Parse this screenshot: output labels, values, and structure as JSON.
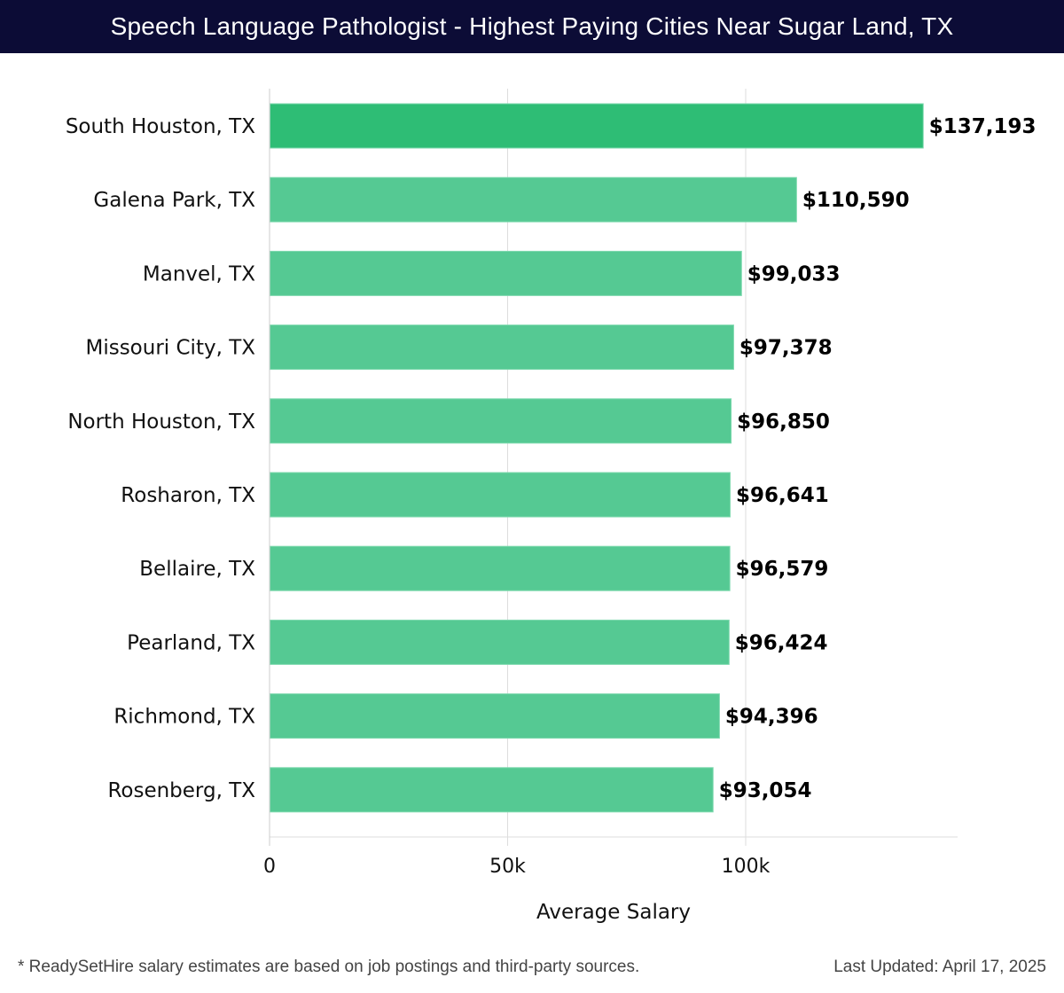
{
  "header": {
    "title": "Speech Language Pathologist - Highest Paying Cities Near Sugar Land, TX",
    "background_color": "#0c0c36"
  },
  "chart_data": {
    "type": "bar",
    "orientation": "horizontal",
    "title": "Speech Language Pathologist - Highest Paying Cities Near Sugar Land, TX",
    "xlabel": "Average Salary",
    "ylabel": "",
    "categories": [
      "South Houston, TX",
      "Galena Park, TX",
      "Manvel, TX",
      "Missouri City, TX",
      "North Houston, TX",
      "Rosharon, TX",
      "Bellaire, TX",
      "Pearland, TX",
      "Richmond, TX",
      "Rosenberg, TX"
    ],
    "values": [
      137193,
      110590,
      99033,
      97378,
      96850,
      96641,
      96579,
      96424,
      94396,
      93054
    ],
    "value_labels": [
      "$137,193",
      "$110,590",
      "$99,033",
      "$97,378",
      "$96,850",
      "$96,641",
      "$96,579",
      "$96,424",
      "$94,396",
      "$93,054"
    ],
    "xlim": [
      0,
      144500
    ],
    "xticks": [
      0,
      50000,
      100000
    ],
    "xtick_labels": [
      "0",
      "50k",
      "100k"
    ],
    "grid": true,
    "colors": {
      "highlight_bar": "#2ebd75",
      "bar": "#55c993",
      "bar_border": "#7dd9ae",
      "grid": "#dddddd"
    }
  },
  "footer": {
    "note": "* ReadySetHire salary estimates are based on job postings and third-party sources.",
    "last_updated": "Last Updated: April 17, 2025"
  }
}
